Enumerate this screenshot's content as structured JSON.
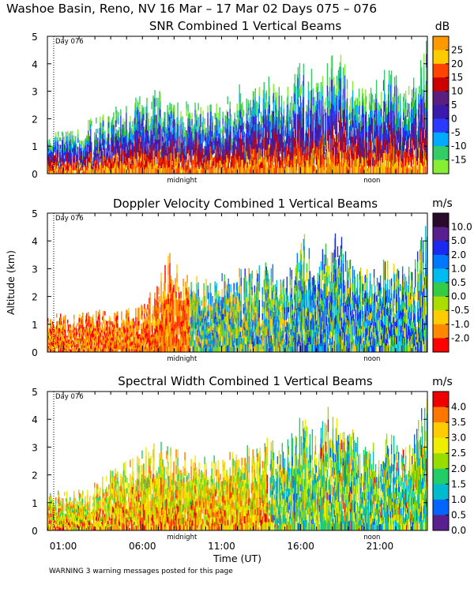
{
  "page_title": "Washoe Basin, Reno, NV  16 Mar – 17 Mar 02 Days 075 – 076",
  "warning": "WARNING  3 warning messages posted for this page",
  "chart_data": [
    {
      "type": "heatmap",
      "title": "SNR Combined 1 Vertical Beams",
      "ylabel": "",
      "ylim": [
        0,
        5
      ],
      "y_ticks": [
        "0",
        "1",
        "2",
        "3",
        "4",
        "5"
      ],
      "xlim_hours": [
        0,
        24
      ],
      "midnight_label": "midnight",
      "noon_label": "noon",
      "day_label": "Day 076",
      "colorbar_unit": "dB",
      "colorbar_labels": [
        "25",
        "20",
        "15",
        "10",
        "5",
        "0",
        "-5",
        "-10",
        "-15"
      ],
      "colorbar_colors": [
        "#ff9900",
        "#ffcc00",
        "#ff4400",
        "#cc0000",
        "#5a1f7f",
        "#3a1aaa",
        "#2a3aff",
        "#00aaff",
        "#33cc66",
        "#88ee33"
      ],
      "field": "snr",
      "echo_top_km": [
        1.2,
        1.3,
        1.4,
        1.6,
        1.8,
        2.0,
        2.1,
        2.3,
        2.5,
        2.7,
        2.3,
        2.2,
        2.2,
        2.1,
        2.3,
        2.6,
        2.8,
        2.6,
        3.0,
        2.7,
        3.3,
        3.5,
        3.1,
        3.9,
        3.6,
        3.0,
        2.8,
        3.0,
        3.4,
        2.6,
        3.0,
        4.2
      ]
    },
    {
      "type": "heatmap",
      "title": "Doppler Velocity Combined 1 Vertical Beams",
      "ylabel": "Altitude (km)",
      "ylim": [
        0,
        5
      ],
      "y_ticks": [
        "0",
        "1",
        "2",
        "3",
        "4",
        "5"
      ],
      "xlim_hours": [
        0,
        24
      ],
      "midnight_label": "midnight",
      "noon_label": "noon",
      "day_label": "Day 076",
      "colorbar_unit": "m/s",
      "colorbar_labels": [
        "10.0",
        "5.0",
        "2.0",
        "1.0",
        "0.5",
        "0.0",
        "-0.5",
        "-1.0",
        "-2.0"
      ],
      "colorbar_colors": [
        "#2a0a2a",
        "#5a1f8f",
        "#1a2aee",
        "#0077ff",
        "#00bbee",
        "#33cc44",
        "#aadd00",
        "#ffcc00",
        "#ff8800",
        "#ff0000"
      ],
      "field": "velocity",
      "echo_top_km": [
        1.1,
        1.2,
        1.2,
        1.2,
        1.3,
        1.2,
        1.3,
        1.4,
        1.6,
        2.5,
        3.0,
        2.4,
        2.3,
        2.2,
        2.4,
        2.4,
        2.6,
        2.6,
        2.9,
        2.5,
        2.9,
        3.6,
        2.6,
        3.8,
        3.5,
        2.8,
        2.6,
        2.7,
        2.9,
        2.6,
        2.8,
        4.3
      ]
    },
    {
      "type": "heatmap",
      "title": "Spectral Width Combined 1 Vertical Beams",
      "ylabel": "",
      "xlabel": "Time (UT)",
      "ylim": [
        0,
        5
      ],
      "y_ticks": [
        "0",
        "1",
        "2",
        "3",
        "4",
        "5"
      ],
      "xlim_hours": [
        0,
        24
      ],
      "x_tick_labels": [
        "01:00",
        "06:00",
        "11:00",
        "16:00",
        "21:00"
      ],
      "x_tick_hours": [
        1,
        6,
        11,
        16,
        21
      ],
      "midnight_label": "midnight",
      "noon_label": "noon",
      "day_label": "Day 076",
      "colorbar_unit": "m/s",
      "colorbar_labels": [
        "4.0",
        "3.5",
        "3.0",
        "2.5",
        "2.0",
        "1.5",
        "1.0",
        "0.5",
        "0.0"
      ],
      "colorbar_colors": [
        "#ee0000",
        "#ff7700",
        "#ffcc00",
        "#eeee00",
        "#99dd00",
        "#22cc66",
        "#00bbcc",
        "#0066ff",
        "#5a1f8f"
      ],
      "field": "width",
      "echo_top_km": [
        1.2,
        1.2,
        1.2,
        1.3,
        1.5,
        1.8,
        2.0,
        2.2,
        2.6,
        2.9,
        2.5,
        2.4,
        2.3,
        2.2,
        2.3,
        2.4,
        2.6,
        2.5,
        2.9,
        2.6,
        3.0,
        3.7,
        2.8,
        3.9,
        3.6,
        3.0,
        2.7,
        2.8,
        3.0,
        2.6,
        2.9,
        4.4
      ]
    }
  ]
}
